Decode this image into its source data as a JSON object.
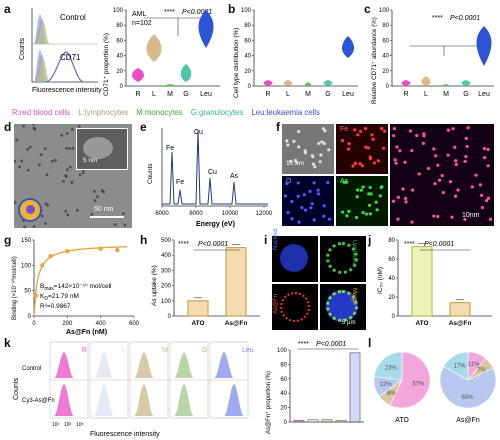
{
  "panel_labels": [
    "a",
    "b",
    "c",
    "d",
    "e",
    "f",
    "g",
    "h",
    "i",
    "j",
    "k",
    "l"
  ],
  "panel_a": {
    "hist": {
      "labels": [
        "Control",
        "CD71"
      ],
      "xlabel": "Fluorescence intensity",
      "ylabel": "Counts"
    },
    "violin": {
      "ylabel": "CD71⁺ proportion (%)",
      "annotation": "AML",
      "n_text": "n=102",
      "significance": "****",
      "p_text": "P<0.0001",
      "yticks": [
        "0",
        "20",
        "40",
        "60",
        "80",
        "100"
      ],
      "categories": [
        "R",
        "L",
        "M",
        "G",
        "Leu"
      ],
      "colors": [
        "#e84fc4",
        "#d9b88a",
        "#5fc64e",
        "#4fc6a8",
        "#2e54d6"
      ]
    }
  },
  "panel_b": {
    "ylabel": "Cell type distribution (%)",
    "yticks": [
      "0",
      "20",
      "40",
      "60",
      "80",
      "100"
    ],
    "categories": [
      "R",
      "L",
      "M",
      "G",
      "Leu"
    ]
  },
  "panel_c": {
    "ylabel": "Relative CD71⁺ abundance (%)",
    "yticks": [
      "0",
      "20",
      "40",
      "60",
      "80",
      "100"
    ],
    "categories": [
      "R",
      "L",
      "M",
      "G",
      "Leu"
    ],
    "significance": "****",
    "p_text": "P<0.0001"
  },
  "legend": {
    "items": [
      {
        "text": "R:red blood cells",
        "color": "#e84fc4"
      },
      {
        "text": "L:lymphocytes",
        "color": "#b39a75"
      },
      {
        "text": "M:monocytes",
        "color": "#3fa832"
      },
      {
        "text": "G:granulocytes",
        "color": "#2fb398"
      },
      {
        "text": "Leu:leukaemia cells",
        "color": "#3a4fd0"
      }
    ]
  },
  "panel_d": {
    "scale_main": "50 nm",
    "scale_inset": "5 nm"
  },
  "panel_e": {
    "xlabel": "Energy (eV)",
    "ylabel": "Counts",
    "xticks": [
      "6000",
      "8000",
      "10000",
      "12000"
    ],
    "peak_labels": [
      "Fe",
      "Cu",
      "Fe",
      "Cu",
      "As"
    ]
  },
  "panel_f": {
    "labels": [
      "Fe",
      "O",
      "As"
    ],
    "scale_small": "10 nm",
    "scale_large": "10nm"
  },
  "panel_g": {
    "ylabel": "Binding (×10⁻¹⁰mol/cell)",
    "xlabel": "As@Fn (nM)",
    "yticks": [
      "0",
      "50",
      "100",
      "150"
    ],
    "xticks": [
      "0",
      "200",
      "400",
      "600"
    ],
    "bmax": "B",
    "bmax_sub": "max",
    "bmax_val": "=142×10⁻¹⁰ mol/cell",
    "kd": "K",
    "kd_sub": "D",
    "kd_val": "=21.79 nM",
    "r2": "R²=0.9867"
  },
  "panel_h": {
    "ylabel": "As uptake (%)",
    "yticks": [
      "0",
      "100",
      "200",
      "300",
      "400",
      "500"
    ],
    "categories": [
      "ATO",
      "As@Fn"
    ],
    "values": [
      100,
      450
    ],
    "significance": "****",
    "p_text": "P<0.0001"
  },
  "panel_i": {
    "labels": [
      "Nucleus",
      "Lysosome",
      "As@Fn",
      "Merge"
    ],
    "scale": "5 μm"
  },
  "panel_j": {
    "ylabel": "IC₅₀ (nM)",
    "yticks": [
      "0",
      "20",
      "40",
      "60",
      "80"
    ],
    "categories": [
      "ATO",
      "As@Fn"
    ],
    "values": [
      73,
      14
    ],
    "significance": "****",
    "p_text": "P<0.0001"
  },
  "panel_k": {
    "labels": [
      "Control",
      "Cy3-As@Fn"
    ],
    "columns": [
      "R",
      "L",
      "M",
      "G",
      "Leu"
    ],
    "xlabel": "Fluorescence intensity",
    "ylabel": "Counts",
    "xticks": [
      "10¹",
      "10³",
      "10⁵"
    ],
    "bar_ylabel": "As@Fn⁺ proportion (%)",
    "bar_yticks": [
      "0",
      "20",
      "40",
      "60",
      "80",
      "100"
    ],
    "significance": "****",
    "p_text": "P<0.0001"
  },
  "panel_l": {
    "pies": [
      {
        "label": "ATO",
        "slices": [
          {
            "name": "R",
            "value": 57,
            "text": "57%",
            "color": "#f3a6dc"
          },
          {
            "name": "L",
            "value": 8,
            "text": "8%",
            "color": "#d8c7a0"
          },
          {
            "name": "G",
            "value": 12,
            "text": "12%",
            "color": "#b7c9ef"
          },
          {
            "name": "Leu",
            "value": 23,
            "text": "23%",
            "color": "#a8dbe9"
          }
        ]
      },
      {
        "label": "As@Fn",
        "slices": [
          {
            "name": "R",
            "value": 11,
            "text": "11%",
            "color": "#f3a6dc"
          },
          {
            "name": "L",
            "value": 7,
            "text": "7%",
            "color": "#d8c7a0"
          },
          {
            "name": "Leu",
            "value": 65,
            "text": "65%",
            "color": "#b7c9ef"
          },
          {
            "name": "G",
            "value": 17,
            "text": "17%",
            "color": "#a8dbe9"
          }
        ]
      }
    ]
  },
  "chart_data": [
    {
      "type": "bar",
      "title": "",
      "categories": [
        "ATO",
        "As@Fn"
      ],
      "values": [
        100,
        450
      ],
      "ylabel": "As uptake (%)",
      "ylim": [
        0,
        500
      ]
    },
    {
      "type": "bar",
      "title": "",
      "categories": [
        "ATO",
        "As@Fn"
      ],
      "values": [
        73,
        14
      ],
      "ylabel": "IC50 (nM)",
      "ylim": [
        0,
        80
      ]
    },
    {
      "type": "pie",
      "title": "ATO",
      "categories": [
        "R",
        "L",
        "G",
        "Leu"
      ],
      "values": [
        57,
        8,
        12,
        23
      ]
    },
    {
      "type": "pie",
      "title": "As@Fn",
      "categories": [
        "R",
        "L",
        "Leu",
        "G"
      ],
      "values": [
        11,
        7,
        65,
        17
      ]
    },
    {
      "type": "scatter",
      "title": "",
      "x": [
        10,
        50,
        100,
        200,
        400,
        500
      ],
      "y": [
        40,
        100,
        118,
        128,
        133,
        130
      ],
      "xlabel": "As@Fn (nM)",
      "ylabel": "Binding (x10^-10 mol/cell)",
      "xlim": [
        0,
        600
      ],
      "ylim": [
        0,
        150
      ]
    }
  ]
}
